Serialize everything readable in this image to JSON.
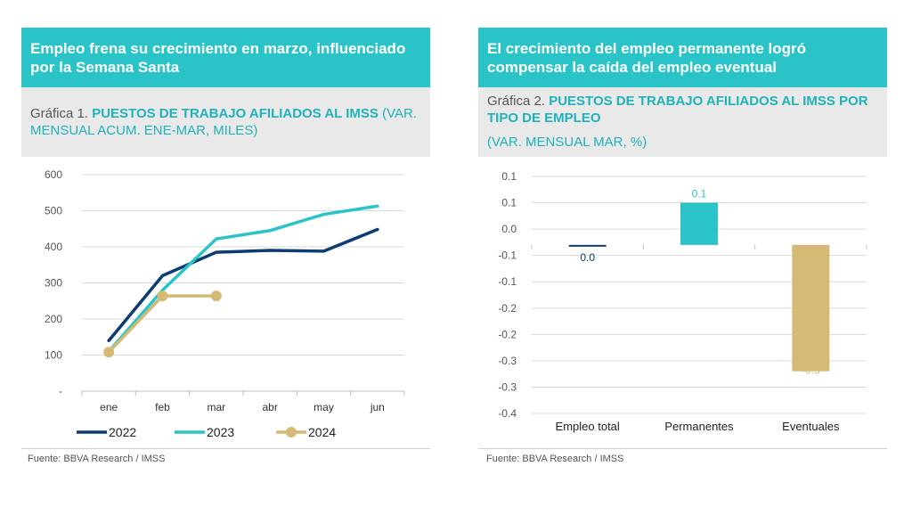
{
  "panel1": {
    "headline": "Empleo frena su crecimiento en marzo, influenciado por la Semana Santa",
    "prefix": "Gráfica 1. ",
    "title_bold": "PUESTOS DE TRABAJO AFILIADOS AL IMSS",
    "title_normal": " (VAR. MENSUAL ACUM. ENE-MAR, MILES)",
    "source": "Fuente: BBVA Research / IMSS"
  },
  "panel2": {
    "headline": "El crecimiento del empleo permanente logró compensar la caída del empleo eventual",
    "prefix": "Gráfica 2. ",
    "title_bold": "PUESTOS DE TRABAJO AFILIADOS AL IMSS POR TIPO DE EMPLEO",
    "title_normal": "(VAR. MENSUAL MAR, %)",
    "source": "Fuente: BBVA Research / IMSS"
  },
  "chart_data": [
    {
      "type": "line",
      "categories": [
        "ene",
        "feb",
        "mar",
        "abr",
        "may",
        "jun"
      ],
      "ylim": [
        0,
        600
      ],
      "yticks": [
        "-",
        "100",
        "200",
        "300",
        "400",
        "500",
        "600"
      ],
      "grid": true,
      "legend": "bottom",
      "series": [
        {
          "name": "2022",
          "color": "#0c3c74",
          "values": [
            140,
            320,
            385,
            390,
            388,
            448
          ],
          "markers": false
        },
        {
          "name": "2023",
          "color": "#2ac4c8",
          "values": [
            110,
            280,
            422,
            445,
            490,
            513
          ],
          "markers": false
        },
        {
          "name": "2024",
          "color": "#d4ba74",
          "values": [
            108,
            264,
            264,
            null,
            null,
            null
          ],
          "markers": true
        }
      ]
    },
    {
      "type": "bar",
      "categories": [
        "Empleo total",
        "Permanentes",
        "Eventuales"
      ],
      "values": [
        0.0,
        0.1,
        -0.3
      ],
      "data_labels": [
        "0.0",
        "0.1",
        "-0.3"
      ],
      "colors": [
        "#0c3c74",
        "#2ac4c8",
        "#d4ba74"
      ],
      "ylim": [
        -0.4,
        0.15
      ],
      "yticks": [
        "0.1",
        "0.1",
        "0.0",
        "-0.1",
        "-0.1",
        "-0.2",
        "-0.2",
        "-0.3",
        "-0.3",
        "-0.4"
      ],
      "grid": true
    }
  ]
}
